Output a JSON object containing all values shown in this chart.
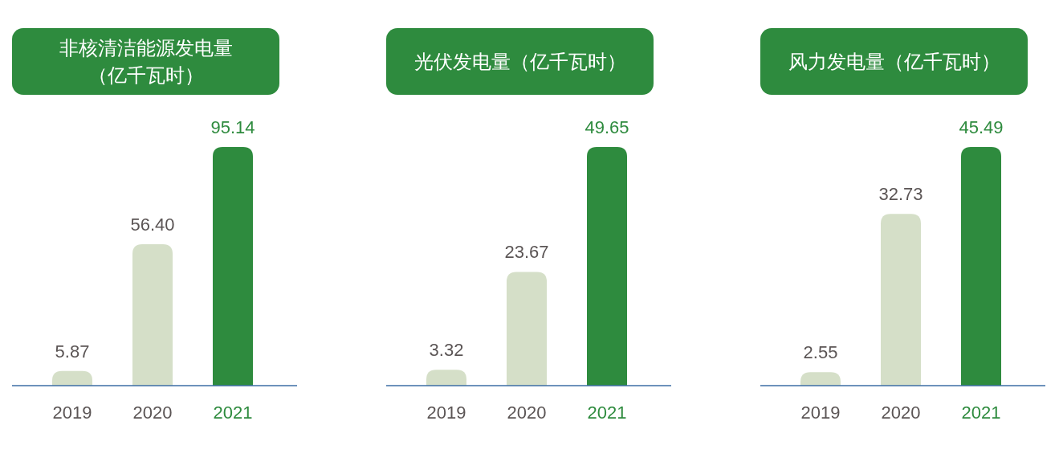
{
  "chart_data": [
    {
      "type": "bar",
      "title": "非核清洁能源发电量（亿千瓦时）",
      "categories": [
        "2019",
        "2020",
        "2021"
      ],
      "values": [
        5.87,
        56.4,
        95.14
      ],
      "value_labels": [
        "5.87",
        "56.40",
        "95.14"
      ],
      "colors": [
        "#d5dfc8",
        "#d5dfc8",
        "#2e8b3e"
      ]
    },
    {
      "type": "bar",
      "title": "光伏发电量（亿千瓦时）",
      "categories": [
        "2019",
        "2020",
        "2021"
      ],
      "values": [
        3.32,
        23.67,
        49.65
      ],
      "value_labels": [
        "3.32",
        "23.67",
        "49.65"
      ],
      "colors": [
        "#d5dfc8",
        "#d5dfc8",
        "#2e8b3e"
      ]
    },
    {
      "type": "bar",
      "title": "风力发电量（亿千瓦时）",
      "categories": [
        "2019",
        "2020",
        "2021"
      ],
      "values": [
        2.55,
        32.73,
        45.49
      ],
      "value_labels": [
        "2.55",
        "32.73",
        "45.49"
      ],
      "colors": [
        "#d5dfc8",
        "#d5dfc8",
        "#2e8b3e"
      ]
    }
  ]
}
